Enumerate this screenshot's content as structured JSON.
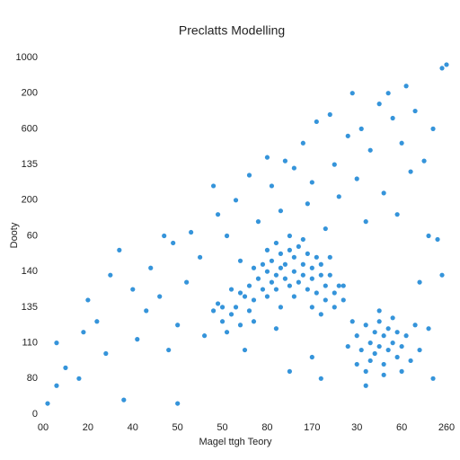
{
  "chart_data": {
    "type": "scatter",
    "title": "Preclatts Modelling",
    "xlabel": "Magel ttgh Teory",
    "ylabel": "Dooty",
    "color": "#1f88d6",
    "xlim": [
      0,
      9
    ],
    "ylim": [
      0,
      10
    ],
    "xticks": [
      {
        "value": 0,
        "label": "00"
      },
      {
        "value": 1,
        "label": "20"
      },
      {
        "value": 2,
        "label": "40"
      },
      {
        "value": 3,
        "label": "50"
      },
      {
        "value": 4,
        "label": "50"
      },
      {
        "value": 5,
        "label": "80"
      },
      {
        "value": 6,
        "label": "170"
      },
      {
        "value": 7,
        "label": "30"
      },
      {
        "value": 8,
        "label": "60"
      },
      {
        "value": 9,
        "label": "260"
      }
    ],
    "yticks": [
      0,
      {
        "value": 1,
        "label": "80"
      },
      {
        "value": 2,
        "label": "110"
      },
      {
        "value": 3,
        "label": "135"
      },
      {
        "value": 4,
        "label": "140"
      },
      {
        "value": 5,
        "label": "60"
      },
      {
        "value": 6,
        "label": "200"
      },
      {
        "value": 7,
        "label": "135"
      },
      {
        "value": 8,
        "label": "600"
      },
      {
        "value": 9,
        "label": "200"
      },
      {
        "value": 10,
        "label": "1000"
      }
    ],
    "x": [
      0.1,
      0.3,
      0.5,
      0.3,
      0.8,
      0.9,
      1.0,
      1.2,
      1.4,
      1.5,
      1.7,
      2.0,
      2.1,
      1.8,
      2.3,
      2.4,
      2.6,
      2.8,
      2.9,
      3.0,
      3.2,
      3.3,
      3.5,
      3.6,
      3.8,
      3.9,
      4.0,
      4.1,
      4.3,
      4.4,
      4.6,
      4.7,
      4.8,
      5.0,
      5.1,
      5.3,
      5.4,
      5.5,
      5.6,
      5.8,
      5.9,
      6.0,
      6.1,
      6.2,
      6.3,
      6.4,
      6.5,
      6.6,
      6.8,
      6.9,
      7.0,
      7.1,
      7.2,
      7.3,
      7.5,
      7.6,
      7.7,
      7.8,
      7.9,
      8.0,
      8.1,
      8.2,
      8.3,
      8.4,
      8.5,
      8.6,
      8.7,
      8.8,
      8.9,
      8.9,
      9.0,
      8.7,
      7.2,
      6.0,
      3.0,
      2.7,
      4.2,
      4.5,
      5.2,
      6.7,
      4.5,
      4.6,
      4.7,
      4.8,
      4.9,
      5.0,
      5.0,
      5.1,
      5.1,
      5.2,
      5.2,
      5.3,
      5.3,
      5.4,
      5.4,
      5.5,
      5.5,
      5.6,
      5.6,
      5.7,
      5.7,
      5.8,
      5.8,
      5.9,
      5.9,
      6.0,
      6.0,
      6.1,
      6.1,
      6.2,
      6.2,
      6.3,
      6.3,
      6.4,
      6.5,
      6.5,
      6.6,
      4.3,
      4.4,
      4.2,
      4.0,
      3.9,
      4.1,
      4.6,
      4.9,
      5.3,
      5.6,
      5.8,
      6.0,
      6.4,
      5.0,
      4.7,
      5.5,
      6.7,
      3.8,
      4.4,
      5.2,
      6.2,
      7.0,
      7.1,
      7.2,
      7.3,
      7.3,
      7.4,
      7.4,
      7.5,
      7.5,
      7.6,
      7.6,
      7.7,
      7.7,
      7.8,
      7.8,
      7.9,
      7.9,
      8.0,
      8.1,
      8.2,
      7.2,
      7.6,
      8.0,
      6.9,
      8.3,
      7.5,
      7.0,
      8.4,
      8.6,
      6.8
    ],
    "y": [
      0.3,
      0.8,
      1.3,
      2.0,
      1.0,
      2.3,
      3.2,
      2.6,
      1.7,
      3.9,
      4.6,
      3.5,
      2.1,
      0.4,
      2.9,
      4.1,
      3.3,
      1.8,
      4.8,
      2.5,
      3.7,
      5.1,
      4.4,
      2.2,
      6.4,
      5.6,
      3.0,
      5.0,
      6.0,
      4.3,
      6.7,
      2.6,
      5.4,
      7.2,
      6.4,
      5.7,
      7.1,
      1.2,
      6.9,
      7.6,
      5.9,
      6.5,
      8.2,
      1.0,
      5.2,
      8.4,
      7.0,
      6.1,
      7.8,
      9.0,
      6.6,
      8.0,
      5.4,
      7.4,
      8.7,
      6.2,
      9.0,
      8.3,
      5.6,
      7.6,
      9.2,
      6.8,
      8.5,
      3.7,
      7.1,
      5.0,
      8.0,
      4.9,
      9.7,
      3.9,
      9.8,
      1.0,
      0.8,
      1.6,
      0.3,
      5.0,
      3.5,
      1.8,
      2.4,
      3.6,
      3.3,
      3.6,
      3.2,
      3.8,
      3.5,
      4.0,
      3.3,
      3.7,
      4.3,
      3.9,
      3.5,
      4.1,
      4.5,
      3.8,
      4.2,
      4.6,
      3.6,
      4.0,
      4.4,
      3.7,
      4.7,
      4.2,
      3.9,
      4.5,
      3.5,
      4.1,
      3.8,
      4.4,
      3.4,
      3.9,
      4.2,
      3.6,
      3.2,
      3.9,
      3.4,
      3.0,
      3.6,
      3.0,
      3.4,
      2.8,
      2.6,
      3.1,
      2.3,
      2.9,
      4.2,
      3.0,
      3.3,
      4.9,
      3.0,
      4.4,
      4.6,
      4.1,
      5.0,
      3.2,
      2.9,
      2.5,
      4.8,
      2.8,
      2.2,
      1.8,
      2.5,
      2.0,
      1.5,
      2.3,
      1.7,
      2.6,
      1.9,
      2.2,
      1.4,
      2.4,
      1.8,
      2.0,
      2.7,
      1.6,
      2.3,
      1.9,
      2.2,
      1.5,
      1.2,
      1.1,
      1.2,
      2.6,
      2.5,
      2.9,
      1.4,
      1.8,
      2.4,
      1.9
    ]
  }
}
